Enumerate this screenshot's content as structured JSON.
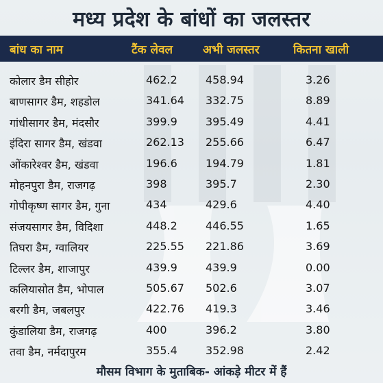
{
  "title": "मध्य प्रदेश के बांधों का जलस्तर",
  "headers": {
    "name": "बांध का नाम",
    "tank_level": "टैंक लेवल",
    "current_level": "अभी जलस्तर",
    "empty": "कितना खाली"
  },
  "rows": [
    {
      "name": "कोलार डैम सीहोर",
      "tank": "462.2",
      "current": "458.94",
      "empty": "3.26"
    },
    {
      "name": "बाणसागर डैम, शहडोल",
      "tank": "341.64",
      "current": "332.75",
      "empty": "8.89"
    },
    {
      "name": "गांधीसागर डैम, मंदसौर",
      "tank": "399.9",
      "current": "395.49",
      "empty": "4.41"
    },
    {
      "name": "इंदिरा सागर डैम, खंडवा",
      "tank": "262.13",
      "current": "255.66",
      "empty": "6.47"
    },
    {
      "name": "ओंकारेश्वर डैम, खंडवा",
      "tank": "196.6",
      "current": "194.79",
      "empty": "1.81"
    },
    {
      "name": "मोहनपुरा डैम, राजगढ़",
      "tank": "398",
      "current": "395.7",
      "empty": "2.30"
    },
    {
      "name": "गोपीकृष्ण सागर डैम, गुना",
      "tank": "434",
      "current": "429.6",
      "empty": "4.40"
    },
    {
      "name": "संजयसागर डैम, विदिशा",
      "tank": "448.2",
      "current": "446.55",
      "empty": "1.65"
    },
    {
      "name": "तिघरा डैम, ग्वालियर",
      "tank": "225.55",
      "current": "221.86",
      "empty": "3.69"
    },
    {
      "name": "टिल्लर डैम, शाजापुर",
      "tank": "439.9",
      "current": "439.9",
      "empty": "0.00"
    },
    {
      "name": "कलियासोत डैम, भोपाल",
      "tank": "505.67",
      "current": "502.6",
      "empty": "3.07"
    },
    {
      "name": "बरगी डैम, जबलपुर",
      "tank": "422.76",
      "current": "419.3",
      "empty": "3.46"
    },
    {
      "name": "कुंडालिया डैम, राजगढ़",
      "tank": "400",
      "current": "396.2",
      "empty": "3.80"
    },
    {
      "name": "तवा डैम, नर्मदापुरम",
      "tank": "355.4",
      "current": "352.98",
      "empty": "2.42"
    }
  ],
  "footer": "मौसम विभाग के मुताबिक- आंकड़े मीटर में हैं"
}
